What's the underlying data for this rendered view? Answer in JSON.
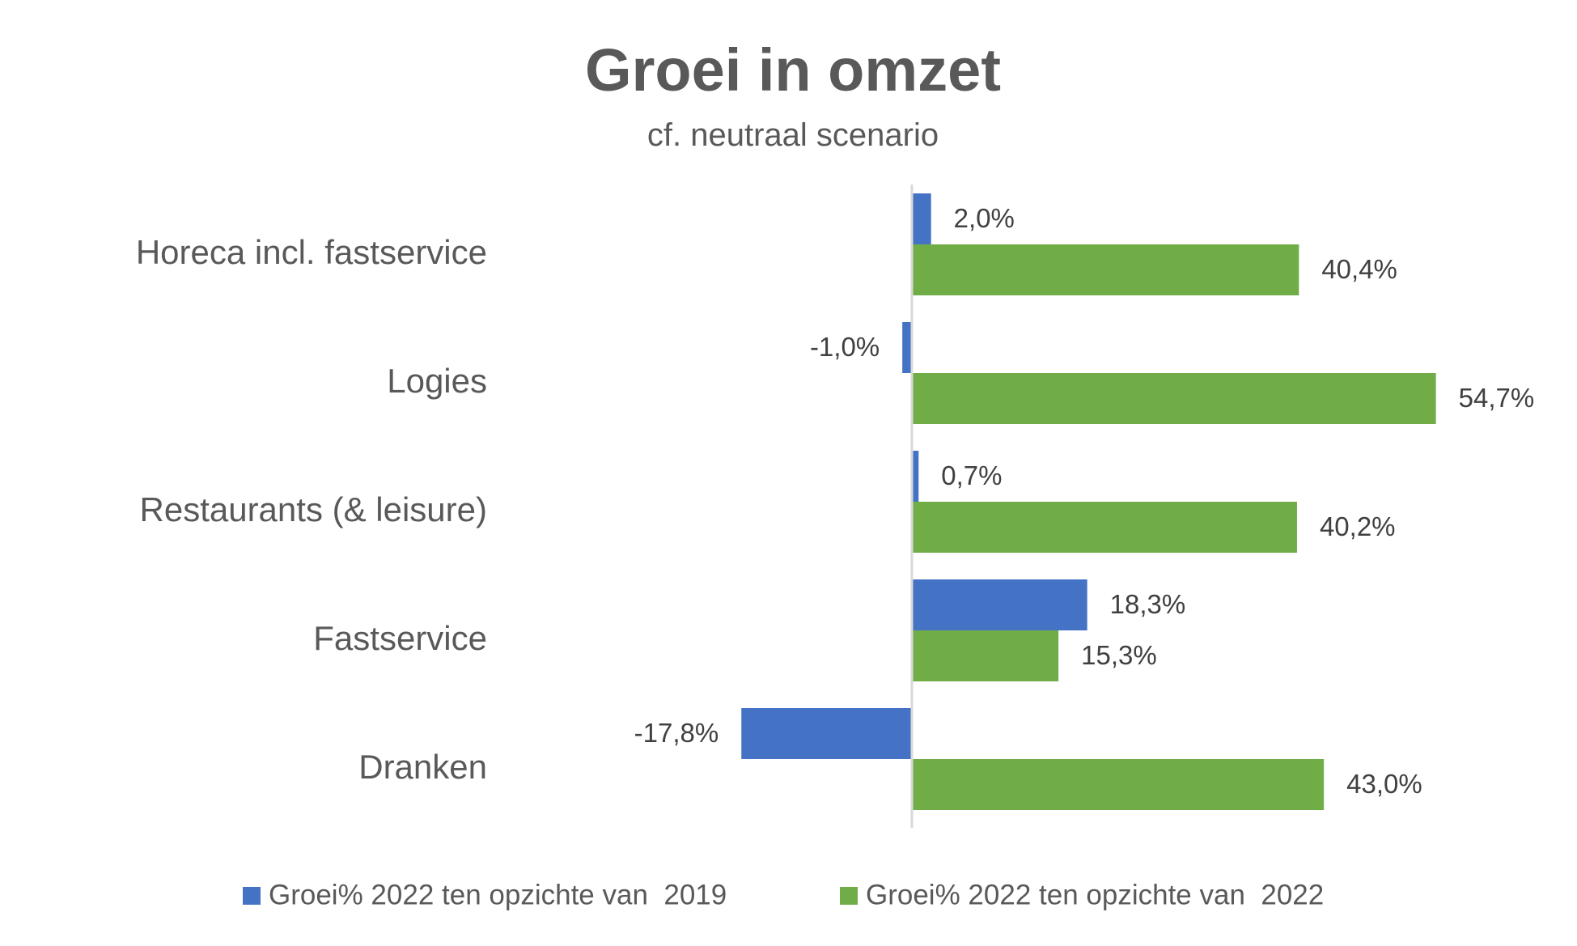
{
  "chart_data": {
    "type": "bar",
    "orientation": "horizontal",
    "title": "Groei in omzet",
    "subtitle": "cf. neutraal scenario",
    "categories": [
      "Horeca incl. fastservice",
      "Logies",
      "Restaurants (& leisure)",
      "Fastservice",
      "Dranken"
    ],
    "series": [
      {
        "name": "Groei% 2022 ten opzichte van  2019",
        "color": "#4472C4",
        "values": [
          2.0,
          -1.0,
          0.7,
          18.3,
          -17.8
        ],
        "labels": [
          "2,0%",
          "-1,0%",
          "0,7%",
          "18,3%",
          "-17,8%"
        ]
      },
      {
        "name": "Groei% 2022 ten opzichte van  2022",
        "color": "#70AD47",
        "values": [
          40.4,
          54.7,
          40.2,
          15.3,
          43.0
        ],
        "labels": [
          "40,4%",
          "54,7%",
          "40,2%",
          "15,3%",
          "43,0%"
        ]
      }
    ],
    "xlim": [
      -20,
      60
    ],
    "grid": false,
    "axis_visible": false,
    "legend_position": "bottom"
  }
}
